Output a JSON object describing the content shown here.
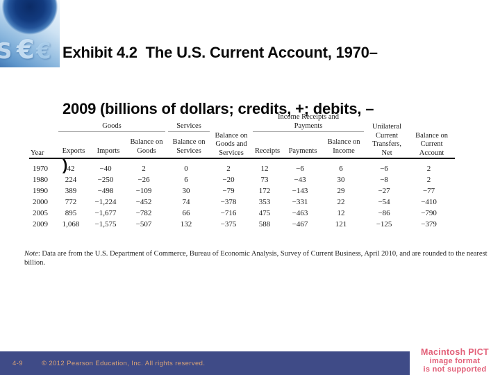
{
  "slide": {
    "title_lines": [
      "Exhibit 4.2  The U.S. Current Account, 1970–",
      "2009 (billions of dollars; credits, +; debits, –",
      ")"
    ],
    "logo": {
      "icon": "globe-euro-collage",
      "glyphs": [
        "€",
        "€",
        "S"
      ]
    }
  },
  "table": {
    "group_headers": [
      {
        "label": "Goods",
        "span": 3
      },
      {
        "label": "Services",
        "span": 1
      },
      {
        "label": "Income Receipts and Payments",
        "span": 3
      }
    ],
    "columns": [
      "Year",
      "Exports",
      "Imports",
      "Balance on Goods",
      "Balance on Services",
      "Balance on Goods and Services",
      "Receipts",
      "Payments",
      "Balance on Income",
      "Unilateral Current Transfers, Net",
      "Balance on Current Account"
    ],
    "rows": [
      [
        "1970",
        "42",
        "−40",
        "2",
        "0",
        "2",
        "12",
        "−6",
        "6",
        "−6",
        "2"
      ],
      [
        "1980",
        "224",
        "−250",
        "−26",
        "6",
        "−20",
        "73",
        "−43",
        "30",
        "−8",
        "2"
      ],
      [
        "1990",
        "389",
        "−498",
        "−109",
        "30",
        "−79",
        "172",
        "−143",
        "29",
        "−27",
        "−77"
      ],
      [
        "2000",
        "772",
        "−1,224",
        "−452",
        "74",
        "−378",
        "353",
        "−331",
        "22",
        "−54",
        "−410"
      ],
      [
        "2005",
        "895",
        "−1,677",
        "−782",
        "66",
        "−716",
        "475",
        "−463",
        "12",
        "−86",
        "−790"
      ],
      [
        "2009",
        "1,068",
        "−1,575",
        "−507",
        "132",
        "−375",
        "588",
        "−467",
        "121",
        "−125",
        "−379"
      ]
    ],
    "note_prefix": "Note",
    "note_text": ": Data are from the U.S. Department of Commerce, Bureau of Economic Analysis, Survey of Current Business, April 2010, and are rounded to the nearest billion."
  },
  "footer": {
    "page_number": "4-9",
    "copyright": "© 2012 Pearson Education, Inc. All rights reserved."
  },
  "pict_warning": {
    "lines": [
      "Macintosh PICT",
      "image format",
      "is not supported"
    ]
  },
  "theme": {
    "footer_bar": "#3f4b87",
    "footer_text": "#d9a378",
    "pict_text": "#e25f78",
    "title_text": "#0a0a0a"
  }
}
